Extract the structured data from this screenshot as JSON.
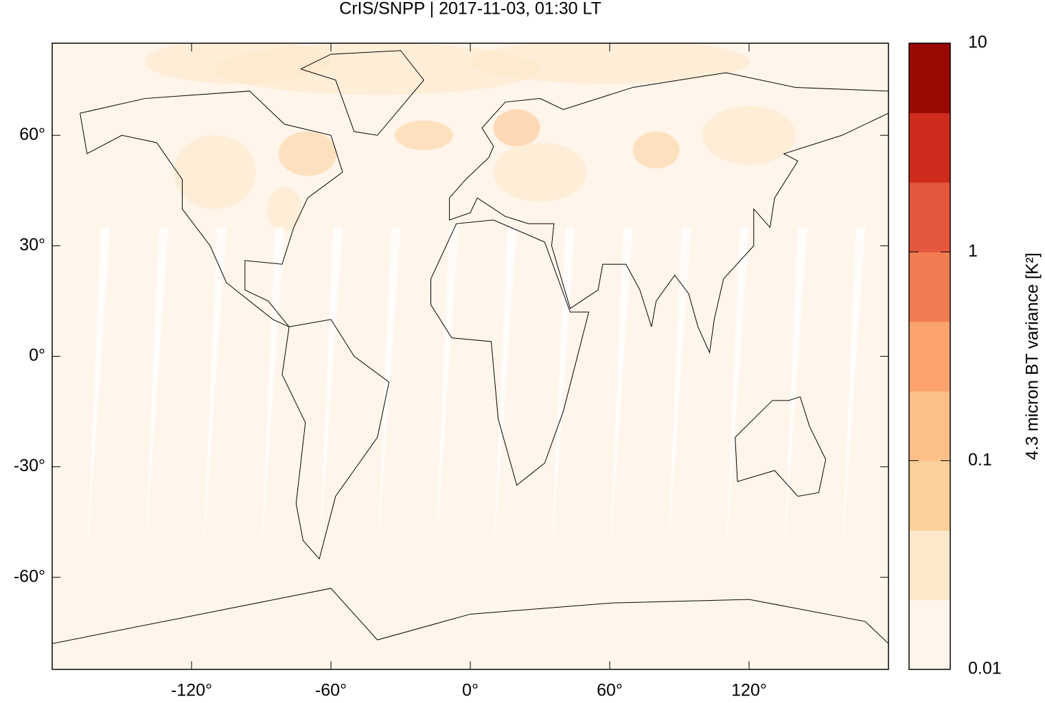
{
  "chart_data": {
    "type": "map",
    "title": "CrIS/SNPP | 2017-11-03, 01:30 LT",
    "xlim": [
      -180,
      180
    ],
    "ylim": [
      -85,
      85
    ],
    "xticks": [
      {
        "value": -120,
        "label": "-120°"
      },
      {
        "value": -60,
        "label": "-60°"
      },
      {
        "value": 0,
        "label": "0°"
      },
      {
        "value": 60,
        "label": "60°"
      },
      {
        "value": 120,
        "label": "120°"
      }
    ],
    "yticks": [
      {
        "value": -60,
        "label": "-60°"
      },
      {
        "value": -30,
        "label": "-30°"
      },
      {
        "value": 0,
        "label": "0°"
      },
      {
        "value": 30,
        "label": "30°"
      },
      {
        "value": 60,
        "label": "60°"
      }
    ],
    "colorbar": {
      "label": "4.3 micron BT variance [K²]",
      "log": true,
      "lim": [
        0.01,
        10
      ],
      "ticks": [
        0.01,
        0.1,
        1,
        10
      ],
      "colors": [
        "#fff5eb",
        "#fde8c9",
        "#fbd09a",
        "#fdbf88",
        "#fca36c",
        "#f07d51",
        "#e5573c",
        "#cf2c1d",
        "#9b0904"
      ]
    }
  }
}
